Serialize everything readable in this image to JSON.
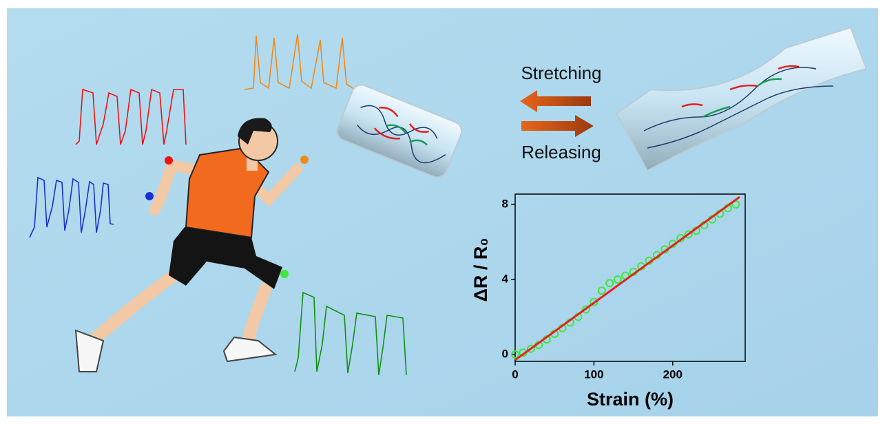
{
  "labels": {
    "stretching": "Stretching",
    "releasing": "Releasing"
  },
  "chart_data": {
    "type": "scatter",
    "x_label": "Strain (%)",
    "y_label": "ΔR / R₀",
    "xlim": [
      0,
      292
    ],
    "ylim": [
      -0.37,
      8.55
    ],
    "xticks": [
      0,
      100,
      200
    ],
    "yticks": [
      0,
      4,
      8
    ],
    "series": [
      {
        "style": "markers",
        "color": "#3ee83a",
        "x": [
          0,
          10,
          20,
          30,
          40,
          50,
          60,
          70,
          80,
          90,
          100,
          110,
          120,
          130,
          140,
          150,
          160,
          170,
          180,
          190,
          200,
          210,
          220,
          230,
          240,
          250,
          260,
          270,
          280
        ],
        "values": [
          0.0,
          0.1,
          0.3,
          0.5,
          0.8,
          1.1,
          1.4,
          1.7,
          2.0,
          2.4,
          2.8,
          3.4,
          3.8,
          4.0,
          4.2,
          4.4,
          4.7,
          5.0,
          5.3,
          5.6,
          5.9,
          6.2,
          6.4,
          6.6,
          6.9,
          7.2,
          7.5,
          7.8,
          8.0
        ]
      },
      {
        "style": "line",
        "color": "#e8201a",
        "x": [
          0,
          285
        ],
        "values": [
          -0.3,
          8.4
        ]
      }
    ]
  }
}
